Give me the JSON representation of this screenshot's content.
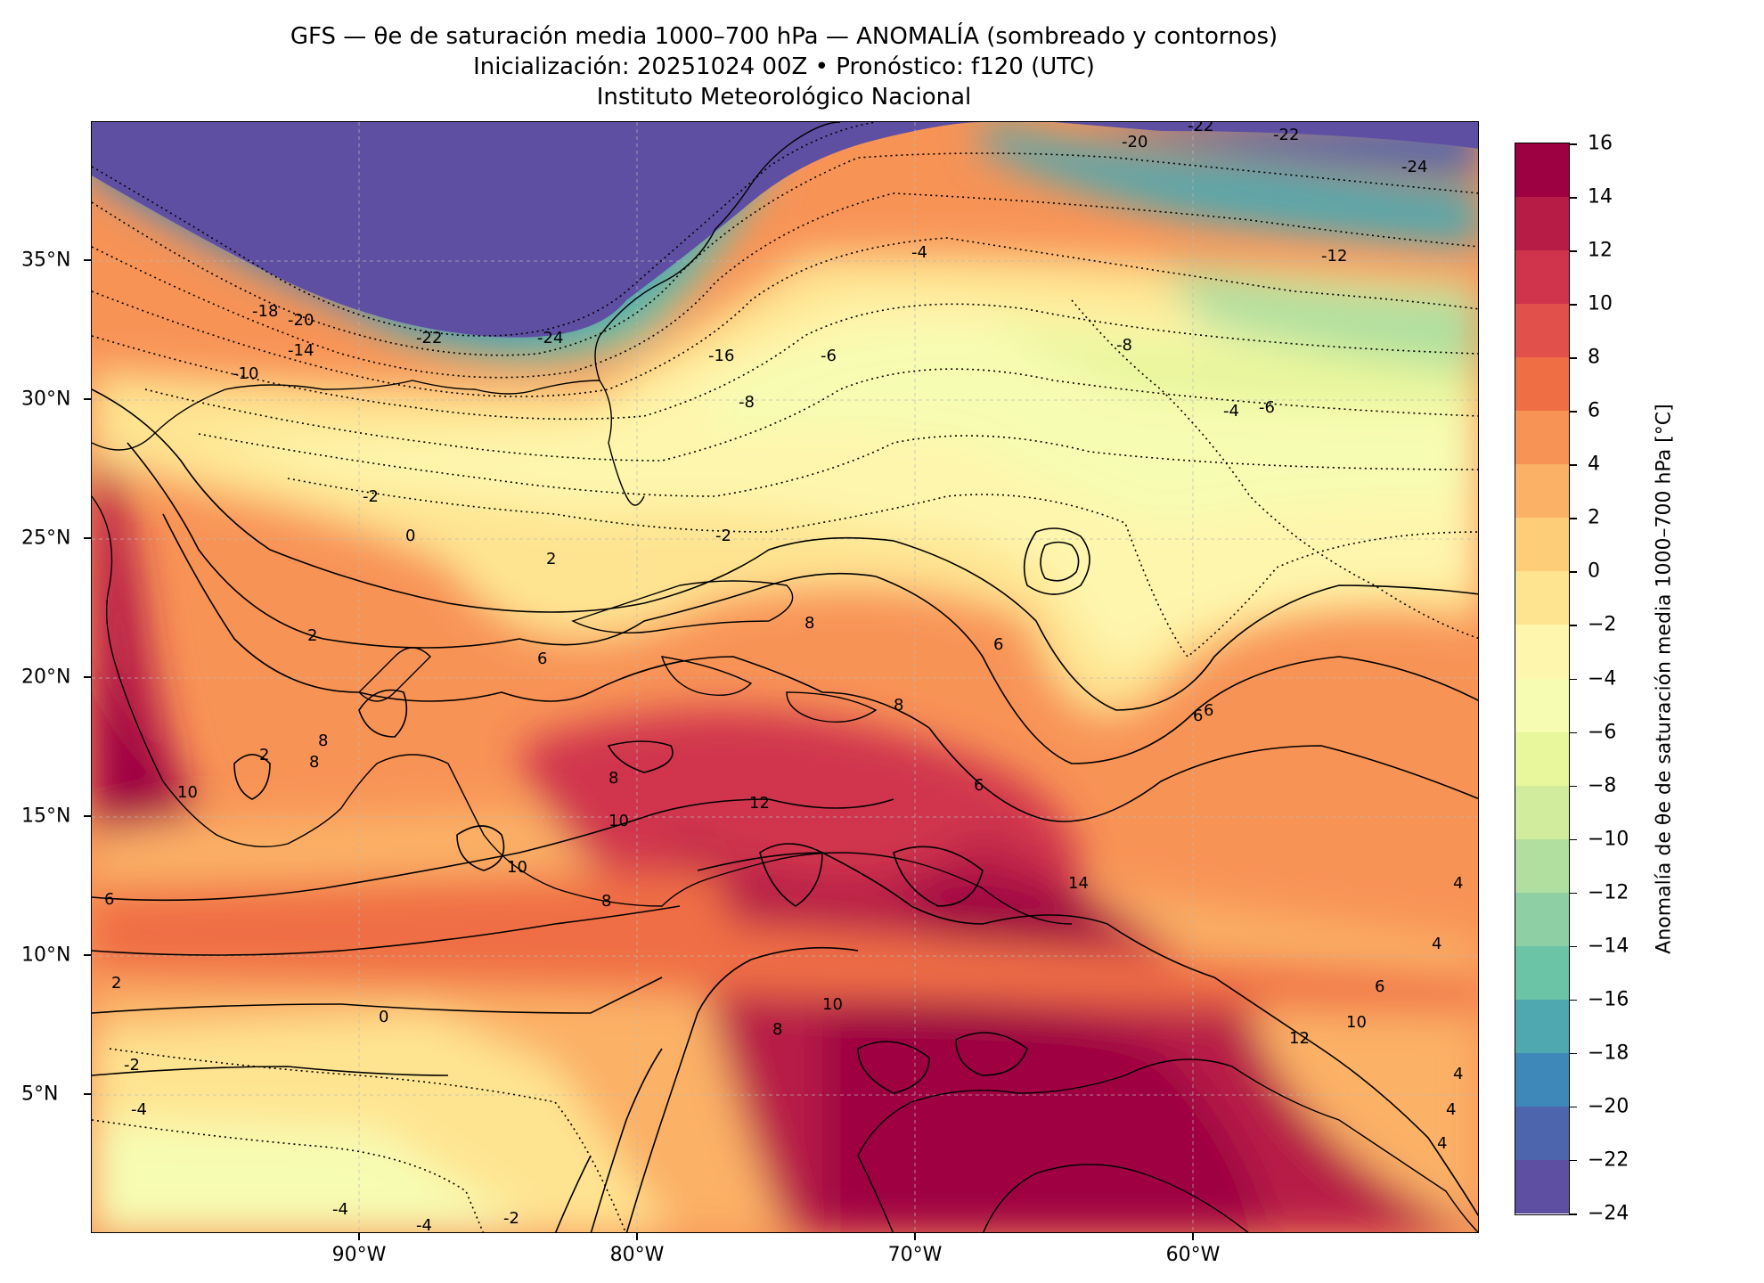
{
  "header": {
    "title_line1": "GFS — θe de saturación media 1000–700 hPa — ANOMALÍA (sombreado y contornos)",
    "title_line2": "Inicialización: 20251024 00Z   •   Pronóstico: f120 (UTC)",
    "title_line3": "Instituto Meteorológico Nacional"
  },
  "map": {
    "longitude_ticks": [
      "90°W",
      "80°W",
      "70°W",
      "60°W"
    ],
    "latitude_ticks": [
      "35°N",
      "30°N",
      "25°N",
      "20°N",
      "15°N",
      "10°N",
      "5°N"
    ],
    "contour_labels": [
      {
        "text": "-18"
      },
      {
        "text": "-20"
      },
      {
        "text": "-14"
      },
      {
        "text": "-22"
      },
      {
        "text": "-24"
      },
      {
        "text": "-10"
      },
      {
        "text": "-16"
      },
      {
        "text": "-6"
      },
      {
        "text": "-8"
      },
      {
        "text": "-4"
      },
      {
        "text": "-12"
      },
      {
        "text": "-20"
      },
      {
        "text": "-22"
      },
      {
        "text": "-22"
      },
      {
        "text": "-24"
      },
      {
        "text": "-8"
      },
      {
        "text": "-4"
      },
      {
        "text": "-6"
      },
      {
        "text": "-2"
      },
      {
        "text": "0"
      },
      {
        "text": "2"
      },
      {
        "text": "-2"
      },
      {
        "text": "2"
      },
      {
        "text": "6"
      },
      {
        "text": "8"
      },
      {
        "text": "6"
      },
      {
        "text": "8"
      },
      {
        "text": "12"
      },
      {
        "text": "8"
      },
      {
        "text": "10"
      },
      {
        "text": "8"
      },
      {
        "text": "10"
      },
      {
        "text": "6"
      },
      {
        "text": "14"
      },
      {
        "text": "6"
      },
      {
        "text": "4"
      },
      {
        "text": "4"
      },
      {
        "text": "6"
      },
      {
        "text": "10"
      },
      {
        "text": "12"
      },
      {
        "text": "6"
      },
      {
        "text": "2"
      },
      {
        "text": "0"
      },
      {
        "text": "-2"
      },
      {
        "text": "-4"
      },
      {
        "text": "-4"
      },
      {
        "text": "-4"
      },
      {
        "text": "-2"
      },
      {
        "text": "8"
      },
      {
        "text": "10"
      },
      {
        "text": "6"
      },
      {
        "text": "8"
      },
      {
        "text": "10"
      },
      {
        "text": "8"
      },
      {
        "text": "4"
      },
      {
        "text": "4"
      },
      {
        "text": "4"
      },
      {
        "text": "2"
      }
    ]
  },
  "colorbar": {
    "label": "Anomalía de θe de saturación media 1000–700 hPa [°C]",
    "ticks": [
      "16",
      "14",
      "12",
      "10",
      "8",
      "6",
      "4",
      "2",
      "0",
      "−2",
      "−4",
      "−6",
      "−8",
      "−10",
      "−12",
      "−14",
      "−16",
      "−18",
      "−20",
      "−22",
      "−24"
    ],
    "colors": [
      "#9e0142",
      "#b71c47",
      "#d0344d",
      "#e1504a",
      "#f06e44",
      "#f89356",
      "#fbb166",
      "#fdcd78",
      "#fee491",
      "#fef6ad",
      "#f7fcb3",
      "#e8f69c",
      "#d1ec9c",
      "#b1df9f",
      "#8ed0a4",
      "#6bc4a5",
      "#4fa7b0",
      "#3e87b9",
      "#4d65ad",
      "#5e4fa2"
    ]
  }
}
